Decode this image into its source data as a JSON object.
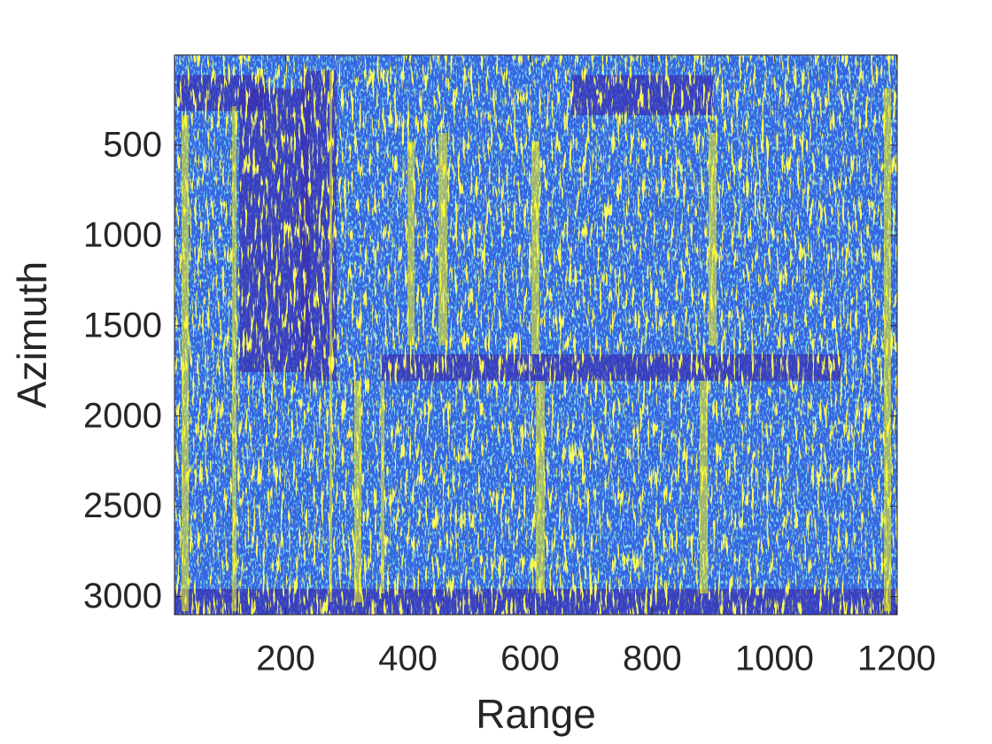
{
  "chart_data": {
    "type": "image",
    "x_label": "Range",
    "y_label": "Azimuth",
    "xlim": [
      18,
      1201
    ],
    "ylim": [
      0,
      3100
    ],
    "y_reversed": true,
    "xticks": [
      200,
      400,
      600,
      800,
      1000,
      1200
    ],
    "yticks": [
      500,
      1000,
      1500,
      2000,
      2500,
      3000
    ],
    "colors": [
      "#3a2fb0",
      "#3564e0",
      "#f7f418"
    ]
  }
}
